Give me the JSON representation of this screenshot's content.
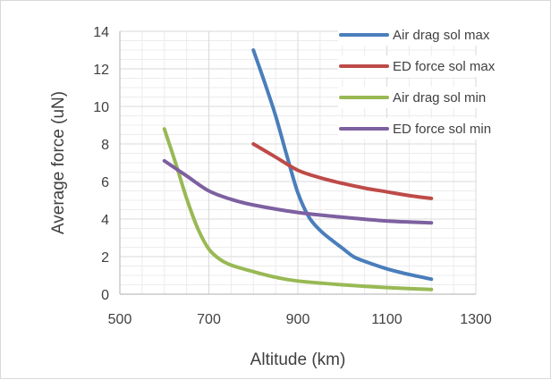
{
  "chart_data": {
    "type": "line",
    "title": "",
    "xlabel": "Altitude (km)",
    "ylabel": "Average force (uN)",
    "xlim": [
      500,
      1300
    ],
    "ylim": [
      0,
      14
    ],
    "x_ticks": [
      500,
      700,
      900,
      1100,
      1300
    ],
    "y_ticks": [
      0,
      2,
      4,
      6,
      8,
      10,
      12,
      14
    ],
    "x_minor_step": 50,
    "y_minor_step": 0.5,
    "grid": true,
    "legend_position": "top-right",
    "series": [
      {
        "name": "Air drag sol max",
        "color": "#4a7ebb",
        "points": [
          [
            800,
            13.0
          ],
          [
            825,
            11.3
          ],
          [
            850,
            9.5
          ],
          [
            875,
            7.4
          ],
          [
            900,
            5.4
          ],
          [
            925,
            4.1
          ],
          [
            950,
            3.4
          ],
          [
            975,
            2.9
          ],
          [
            1000,
            2.45
          ],
          [
            1025,
            2.0
          ],
          [
            1050,
            1.75
          ],
          [
            1100,
            1.35
          ],
          [
            1150,
            1.05
          ],
          [
            1200,
            0.8
          ]
        ]
      },
      {
        "name": "ED force sol max",
        "color": "#be4b48",
        "points": [
          [
            800,
            8.0
          ],
          [
            850,
            7.3
          ],
          [
            900,
            6.6
          ],
          [
            950,
            6.2
          ],
          [
            1000,
            5.9
          ],
          [
            1050,
            5.65
          ],
          [
            1100,
            5.45
          ],
          [
            1150,
            5.25
          ],
          [
            1200,
            5.1
          ]
        ]
      },
      {
        "name": "Air drag sol min",
        "color": "#98b954",
        "points": [
          [
            600,
            8.8
          ],
          [
            625,
            7.0
          ],
          [
            650,
            5.1
          ],
          [
            675,
            3.5
          ],
          [
            700,
            2.4
          ],
          [
            725,
            1.85
          ],
          [
            750,
            1.55
          ],
          [
            800,
            1.2
          ],
          [
            850,
            0.9
          ],
          [
            900,
            0.7
          ],
          [
            1000,
            0.5
          ],
          [
            1100,
            0.35
          ],
          [
            1200,
            0.25
          ]
        ]
      },
      {
        "name": "ED force sol min",
        "color": "#7d60a0",
        "points": [
          [
            600,
            7.1
          ],
          [
            650,
            6.3
          ],
          [
            700,
            5.5
          ],
          [
            750,
            5.05
          ],
          [
            800,
            4.75
          ],
          [
            900,
            4.35
          ],
          [
            1000,
            4.1
          ],
          [
            1100,
            3.9
          ],
          [
            1200,
            3.8
          ]
        ]
      }
    ]
  }
}
